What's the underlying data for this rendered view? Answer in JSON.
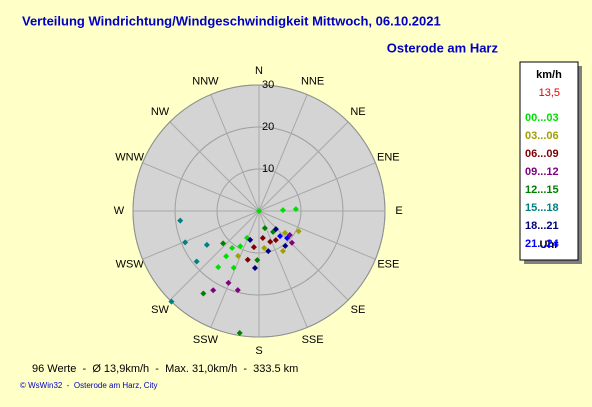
{
  "chart_data": {
    "type": "scatter",
    "polar": true,
    "title": "Verteilung Windrichtung/Windgeschwindigkeit  Mittwoch, 06.10.2021",
    "subtitle": "Osterode am Harz",
    "directions": [
      "N",
      "NNE",
      "NE",
      "ENE",
      "E",
      "ESE",
      "SE",
      "SSE",
      "S",
      "SSW",
      "SW",
      "WSW",
      "W",
      "WNW",
      "NW",
      "NNW"
    ],
    "rlim": [
      0,
      30
    ],
    "rticks": [
      10,
      20,
      30
    ],
    "grid": true,
    "legend_title": "km/h",
    "legend_value": "13,5",
    "legend_footer": "Uhr",
    "series": [
      {
        "name": "00...03",
        "color": "#00e000",
        "x": [
          0,
          88,
          87,
          204,
          208,
          216,
          216,
          204,
          216
        ],
        "values": [
          0,
          5.7,
          8.8,
          7.0,
          9.5,
          10.9,
          13.3,
          14.8,
          16.5
        ]
      },
      {
        "name": "03...06",
        "color": "#a0a000",
        "x": [
          172,
          130,
          117,
          149,
          205
        ],
        "values": [
          8.9,
          8.1,
          10.6,
          11.1,
          11.8
        ]
      },
      {
        "name": "06...09",
        "color": "#800000",
        "x": [
          172,
          160,
          150,
          188,
          193
        ],
        "values": [
          6.5,
          7.8,
          8.0,
          8.7,
          11.9
        ]
      },
      {
        "name": "09...12",
        "color": "#800080",
        "x": [
          128,
          134,
          203,
          195,
          210
        ],
        "values": [
          9.3,
          10.9,
          18.6,
          19.5,
          21.8
        ]
      },
      {
        "name": "12...15",
        "color": "#008000",
        "x": [
          161,
          146,
          182,
          189,
          214,
          228
        ],
        "values": [
          4.3,
          6.0,
          11.7,
          29.4,
          23.7,
          11.5
        ]
      },
      {
        "name": "15...18",
        "color": "#008080",
        "x": [
          263,
          224,
          237,
          231,
          247
        ],
        "values": [
          18.9,
          30.0,
          14.8,
          19.1,
          19.1
        ]
      },
      {
        "name": "18...21",
        "color": "#000080",
        "x": [
          137,
          167,
          197,
          184,
          143
        ],
        "values": [
          5.9,
          9.8,
          7.2,
          13.6,
          10.4
        ]
      },
      {
        "name": "21...24",
        "color": "#0000ff",
        "x": [
          140,
          134
        ],
        "values": [
          7.8,
          9.3
        ]
      }
    ]
  },
  "footer": {
    "stats": "96 Werte  -  Ø 13,9km/h  -  Max. 31,0km/h  -  333.5 km",
    "credit": "© WsWin32  -  Osterode am Harz, City"
  }
}
